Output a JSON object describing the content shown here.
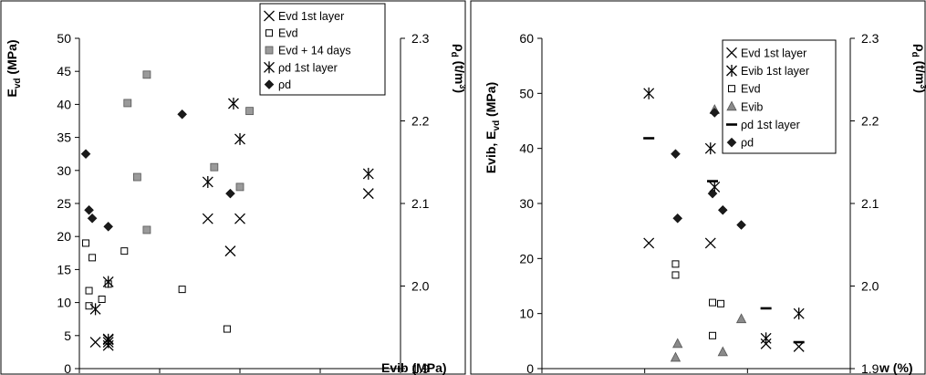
{
  "chart_data": [
    {
      "type": "scatter",
      "xlabel": "Evib (MPa)",
      "ylabel": "E_vd (MPa)",
      "y2label": "ρ_d (t/m³)",
      "xlim": [
        0,
        100
      ],
      "ylim": [
        0,
        50
      ],
      "y2lim": [
        1.9,
        2.3
      ],
      "xticks": [
        "0",
        "25",
        "50",
        "75"
      ],
      "yticks": [
        "0",
        "5",
        "10",
        "15",
        "20",
        "25",
        "30",
        "35",
        "40",
        "45",
        "50"
      ],
      "y2ticks": [
        "1.9",
        "2.0",
        "2.1",
        "2.2",
        "2.3"
      ],
      "legend_position": "top-right",
      "series": [
        {
          "name": "Evd 1st layer",
          "marker": "x",
          "axis": "left",
          "x": [
            5,
            9,
            9,
            40,
            47,
            50,
            90
          ],
          "y": [
            4,
            3.5,
            4.5,
            22.7,
            17.8,
            22.7,
            26.5
          ]
        },
        {
          "name": "Evd",
          "marker": "open-square",
          "axis": "left",
          "x": [
            2,
            3,
            3,
            4,
            7,
            9,
            14,
            32,
            46
          ],
          "y": [
            19,
            11.8,
            9.5,
            16.8,
            10.5,
            12.8,
            17.8,
            12,
            6
          ]
        },
        {
          "name": "Evd + 14 days",
          "marker": "gray-square",
          "axis": "left",
          "x": [
            15,
            18,
            21,
            21,
            42,
            50,
            53
          ],
          "y": [
            40.2,
            29,
            44.5,
            21,
            30.5,
            27.5,
            39
          ]
        },
        {
          "name": "ρd 1st layer",
          "marker": "asterisk",
          "axis": "right",
          "x": [
            5,
            9,
            9,
            9,
            40,
            48,
            50,
            90
          ],
          "y": [
            1.972,
            1.935,
            1.932,
            2.005,
            2.126,
            2.221,
            2.178,
            2.136
          ]
        },
        {
          "name": "ρd",
          "marker": "diamond",
          "axis": "right",
          "x": [
            2,
            3,
            4,
            9,
            32,
            47
          ],
          "y": [
            2.16,
            2.092,
            2.082,
            2.072,
            2.208,
            2.112
          ]
        }
      ]
    },
    {
      "type": "scatter",
      "xlabel": "w (%)",
      "ylabel": "Evib, E_vd (MPa)",
      "y2label": "ρ_d (t/m³)",
      "xlim": [
        0,
        15
      ],
      "ylim": [
        0,
        60
      ],
      "y2lim": [
        1.9,
        2.3
      ],
      "xticks": [
        "0",
        "5",
        "10",
        "15"
      ],
      "yticks": [
        "0",
        "10",
        "20",
        "30",
        "40",
        "50",
        "60"
      ],
      "y2ticks": [
        "1.9",
        "2.0",
        "2.1",
        "2.2",
        "2.3"
      ],
      "legend_position": "top-right",
      "series": [
        {
          "name": "Evd 1st layer",
          "marker": "x",
          "axis": "left",
          "x": [
            5.2,
            8.2,
            10.9,
            12.5
          ],
          "y": [
            22.8,
            22.8,
            4.5,
            4
          ]
        },
        {
          "name": "Evib 1st layer",
          "marker": "asterisk",
          "axis": "left",
          "x": [
            5.2,
            8.2,
            8.4,
            10.9,
            12.5
          ],
          "y": [
            50,
            40,
            33,
            5.5,
            10
          ]
        },
        {
          "name": "Evd",
          "marker": "open-square",
          "axis": "left",
          "x": [
            6.5,
            6.5,
            8.3,
            8.3,
            8.7
          ],
          "y": [
            19,
            17,
            12,
            6,
            11.8
          ]
        },
        {
          "name": "Evib",
          "marker": "triangle",
          "axis": "left",
          "x": [
            6.6,
            6.5,
            8.4,
            8.8,
            9.7
          ],
          "y": [
            4.5,
            2,
            47,
            3,
            9
          ]
        },
        {
          "name": "ρd 1st layer",
          "marker": "dash",
          "axis": "right",
          "x": [
            5.2,
            8.3,
            10.9,
            12.5
          ],
          "y": [
            2.179,
            2.127,
            1.973,
            1.932
          ]
        },
        {
          "name": "ρd",
          "marker": "diamond",
          "axis": "right",
          "x": [
            6.5,
            6.6,
            8.4,
            8.3,
            8.8,
            9.7
          ],
          "y": [
            2.16,
            2.082,
            2.21,
            2.112,
            2.092,
            2.074
          ]
        }
      ]
    }
  ]
}
